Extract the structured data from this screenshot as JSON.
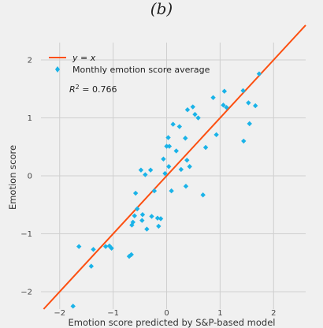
{
  "panel_label": "(b)",
  "chart_data": {
    "type": "scatter",
    "title": "",
    "xlabel": "Emotion score predicted by S&P-based model",
    "ylabel": "Emotion score",
    "xlim": [
      -2.35,
      2.6
    ],
    "ylim": [
      -2.3,
      2.3
    ],
    "xticks": [
      -2,
      -1,
      0,
      1,
      2
    ],
    "yticks": [
      -2,
      -1,
      0,
      1,
      2
    ],
    "tick_labels_x": [
      "−2",
      "−1",
      "0",
      "1",
      "2"
    ],
    "tick_labels_y": [
      "−2",
      "−1",
      "0",
      "1",
      "2"
    ],
    "grid": true,
    "legend_position": "top-left",
    "annotation": "R² = 0.766",
    "colors": {
      "line": "#fc4f10",
      "points": "#1ab3e8",
      "background": "#f0f0f0",
      "grid": "#cfcfcf"
    },
    "series": [
      {
        "name": "y = x",
        "kind": "line",
        "x": [
          -2.3,
          2.6
        ],
        "y": [
          -2.3,
          2.6
        ]
      },
      {
        "name": "Monthly emotion score average",
        "kind": "scatter",
        "x": [
          -1.75,
          -1.64,
          -1.37,
          -1.41,
          -1.14,
          -1.07,
          -1.03,
          -0.7,
          -0.66,
          -0.65,
          -0.63,
          -0.6,
          -0.58,
          -0.55,
          -0.48,
          -0.46,
          -0.45,
          -0.4,
          -0.37,
          -0.3,
          -0.28,
          -0.23,
          -0.17,
          -0.15,
          -0.11,
          -0.06,
          -0.03,
          0.0,
          0.03,
          0.04,
          0.05,
          0.09,
          0.12,
          0.18,
          0.24,
          0.27,
          0.35,
          0.36,
          0.38,
          0.39,
          0.43,
          0.49,
          0.53,
          0.59,
          0.68,
          0.73,
          0.87,
          0.93,
          1.06,
          1.08,
          1.12,
          1.43,
          1.44,
          1.53,
          1.55,
          1.66,
          1.73
        ],
        "y": [
          -2.25,
          -1.22,
          -1.27,
          -1.56,
          -1.22,
          -1.21,
          -1.25,
          -1.39,
          -1.36,
          -0.85,
          -0.8,
          -0.69,
          -0.3,
          -0.57,
          0.1,
          -0.77,
          -0.67,
          0.02,
          -0.92,
          0.1,
          -0.7,
          -0.26,
          -0.73,
          -0.87,
          -0.74,
          0.29,
          0.04,
          0.51,
          0.66,
          0.16,
          0.51,
          -0.26,
          0.89,
          0.43,
          0.85,
          0.11,
          0.65,
          -0.18,
          0.27,
          1.14,
          0.16,
          1.19,
          1.06,
          1.0,
          -0.33,
          0.49,
          1.35,
          0.71,
          1.22,
          1.46,
          1.18,
          1.47,
          0.6,
          1.26,
          0.9,
          1.21,
          1.76
        ]
      }
    ]
  }
}
